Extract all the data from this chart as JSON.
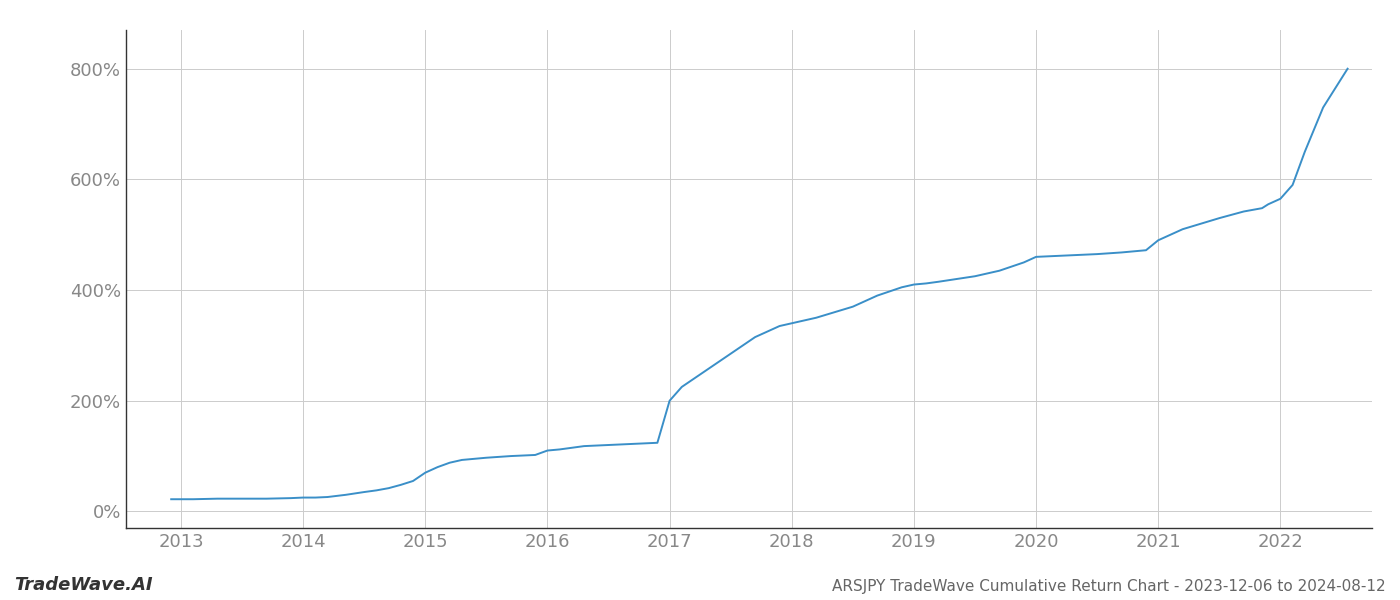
{
  "title": "ARSJPY TradeWave Cumulative Return Chart - 2023-12-06 to 2024-08-12",
  "watermark": "TradeWave.AI",
  "line_color": "#3a8fc8",
  "background_color": "#ffffff",
  "grid_color": "#cccccc",
  "text_color": "#888888",
  "spine_color": "#333333",
  "x_years": [
    2013,
    2014,
    2015,
    2016,
    2017,
    2018,
    2019,
    2020,
    2021,
    2022
  ],
  "y_ticks": [
    0,
    200,
    400,
    600,
    800
  ],
  "ylim": [
    -30,
    870
  ],
  "xlim": [
    2012.55,
    2022.75
  ],
  "data_x": [
    2012.92,
    2013.0,
    2013.1,
    2013.3,
    2013.5,
    2013.7,
    2013.9,
    2014.0,
    2014.1,
    2014.2,
    2014.35,
    2014.5,
    2014.6,
    2014.7,
    2014.8,
    2014.9,
    2015.0,
    2015.1,
    2015.2,
    2015.3,
    2015.5,
    2015.7,
    2015.9,
    2016.0,
    2016.1,
    2016.2,
    2016.3,
    2016.5,
    2016.7,
    2016.9,
    2017.0,
    2017.1,
    2017.2,
    2017.3,
    2017.5,
    2017.7,
    2017.9,
    2018.0,
    2018.1,
    2018.2,
    2018.5,
    2018.7,
    2018.9,
    2019.0,
    2019.1,
    2019.2,
    2019.5,
    2019.7,
    2019.9,
    2020.0,
    2020.2,
    2020.5,
    2020.7,
    2020.9,
    2021.0,
    2021.2,
    2021.5,
    2021.7,
    2021.85,
    2021.9,
    2022.0,
    2022.1,
    2022.2,
    2022.35,
    2022.55
  ],
  "data_y": [
    22,
    22,
    22,
    23,
    23,
    23,
    24,
    25,
    25,
    26,
    30,
    35,
    38,
    42,
    48,
    55,
    70,
    80,
    88,
    93,
    97,
    100,
    102,
    110,
    112,
    115,
    118,
    120,
    122,
    124,
    200,
    225,
    240,
    255,
    285,
    315,
    335,
    340,
    345,
    350,
    370,
    390,
    405,
    410,
    412,
    415,
    425,
    435,
    450,
    460,
    462,
    465,
    468,
    472,
    490,
    510,
    530,
    542,
    548,
    555,
    565,
    590,
    650,
    730,
    800
  ],
  "line_width": 1.4,
  "title_fontsize": 11,
  "tick_fontsize": 13,
  "watermark_fontsize": 13,
  "title_color": "#666666",
  "watermark_color": "#333333"
}
